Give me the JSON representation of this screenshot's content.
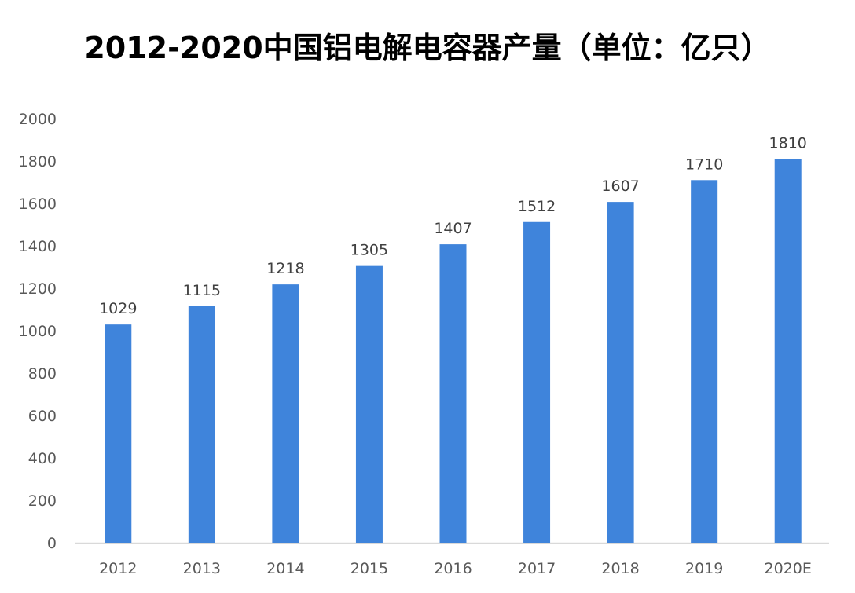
{
  "chart_data": {
    "type": "bar",
    "title": "2012-2020中国铝电解电容器产量（单位：亿只）",
    "categories": [
      "2012",
      "2013",
      "2014",
      "2015",
      "2016",
      "2017",
      "2018",
      "2019",
      "2020E"
    ],
    "series": [
      {
        "values": [
          1029,
          1115,
          1218,
          1305,
          1407,
          1512,
          1607,
          1710,
          1810
        ],
        "color": "#3F84DB"
      }
    ],
    "data_labels": [
      "1029",
      "1115",
      "1218",
      "1305",
      "1407",
      "1512",
      "1607",
      "1710",
      "1810"
    ],
    "ylim": [
      0,
      2000
    ],
    "yticks": [
      0,
      200,
      400,
      600,
      800,
      1000,
      1200,
      1400,
      1600,
      1800,
      2000
    ],
    "ytick_labels": [
      "0",
      "200",
      "400",
      "600",
      "800",
      "1000",
      "1200",
      "1400",
      "1600",
      "1800",
      "2000"
    ],
    "xlabel": "",
    "ylabel": "",
    "grid": false,
    "legend": "none"
  }
}
